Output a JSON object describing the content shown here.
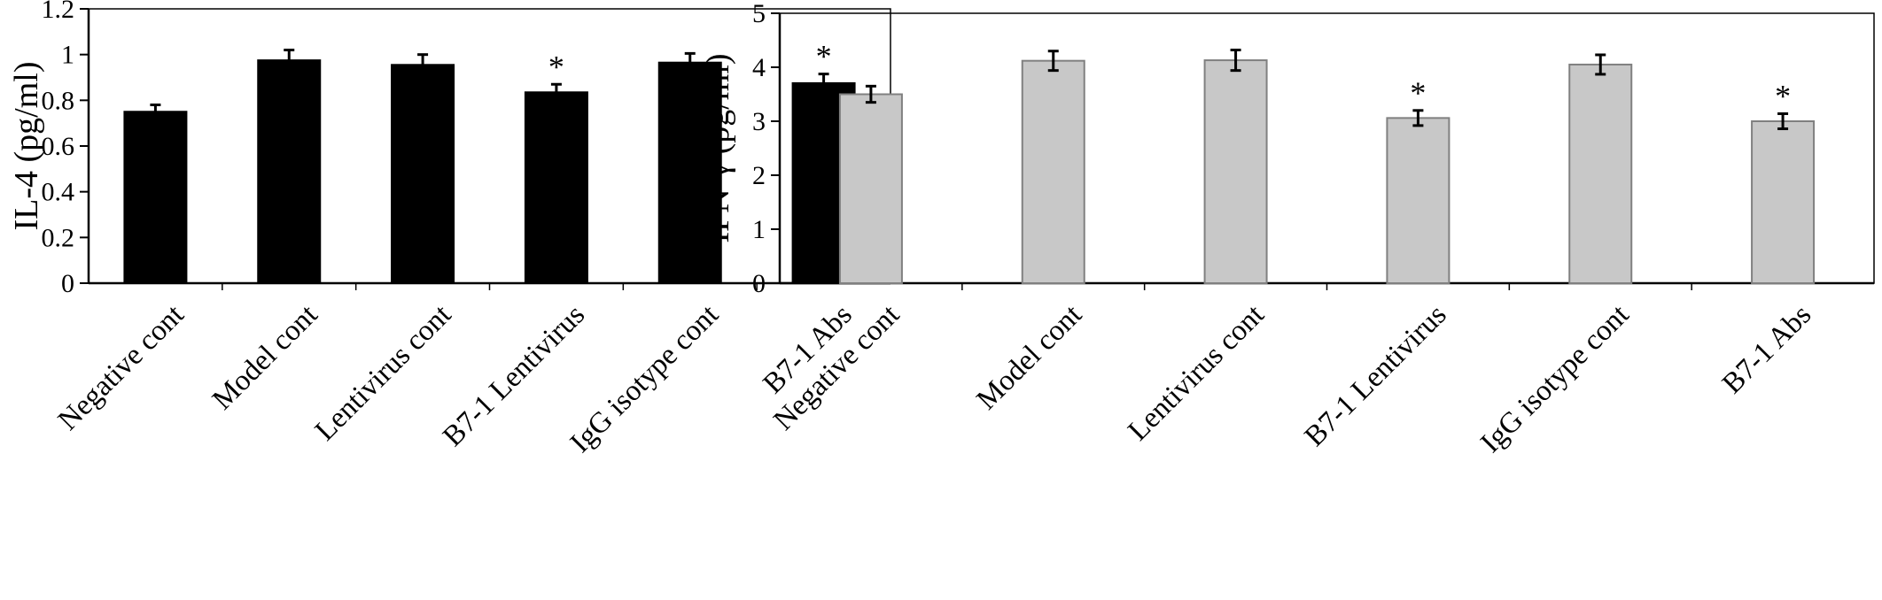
{
  "chart_data": [
    {
      "type": "bar",
      "ylabel": "IL-4 (pg/ml)",
      "categories": [
        "Negative cont",
        "Model cont",
        "Lentivirus cont",
        "B7-1 Lentivirus",
        "IgG isotype cont",
        "B7-1 Abs"
      ],
      "values": [
        0.75,
        0.975,
        0.955,
        0.835,
        0.965,
        0.875
      ],
      "errors": [
        0.03,
        0.045,
        0.045,
        0.035,
        0.04,
        0.04
      ],
      "significance": [
        "",
        "",
        "",
        "*",
        "",
        "*"
      ],
      "ylim": [
        0,
        1.2
      ],
      "yticks": [
        "0",
        "0.2",
        "0.4",
        "0.6",
        "0.8",
        "1",
        "1.2"
      ],
      "bar_color": "#000000",
      "grid": false
    },
    {
      "type": "bar",
      "ylabel": "IFN-γ (pg/ml)",
      "categories": [
        "Negative cont",
        "Model cont",
        "Lentivirus cont",
        "B7-1 Lentivirus",
        "IgG isotype cont",
        "B7-1 Abs"
      ],
      "values": [
        3.5,
        4.12,
        4.13,
        3.06,
        4.05,
        3.0
      ],
      "errors": [
        0.15,
        0.18,
        0.19,
        0.14,
        0.18,
        0.14
      ],
      "significance": [
        "",
        "",
        "",
        "*",
        "",
        "*"
      ],
      "ylim": [
        0,
        5
      ],
      "yticks": [
        "0",
        "1",
        "2",
        "3",
        "4",
        "5"
      ],
      "bar_color": "#c8c8c8",
      "grid": false
    }
  ]
}
